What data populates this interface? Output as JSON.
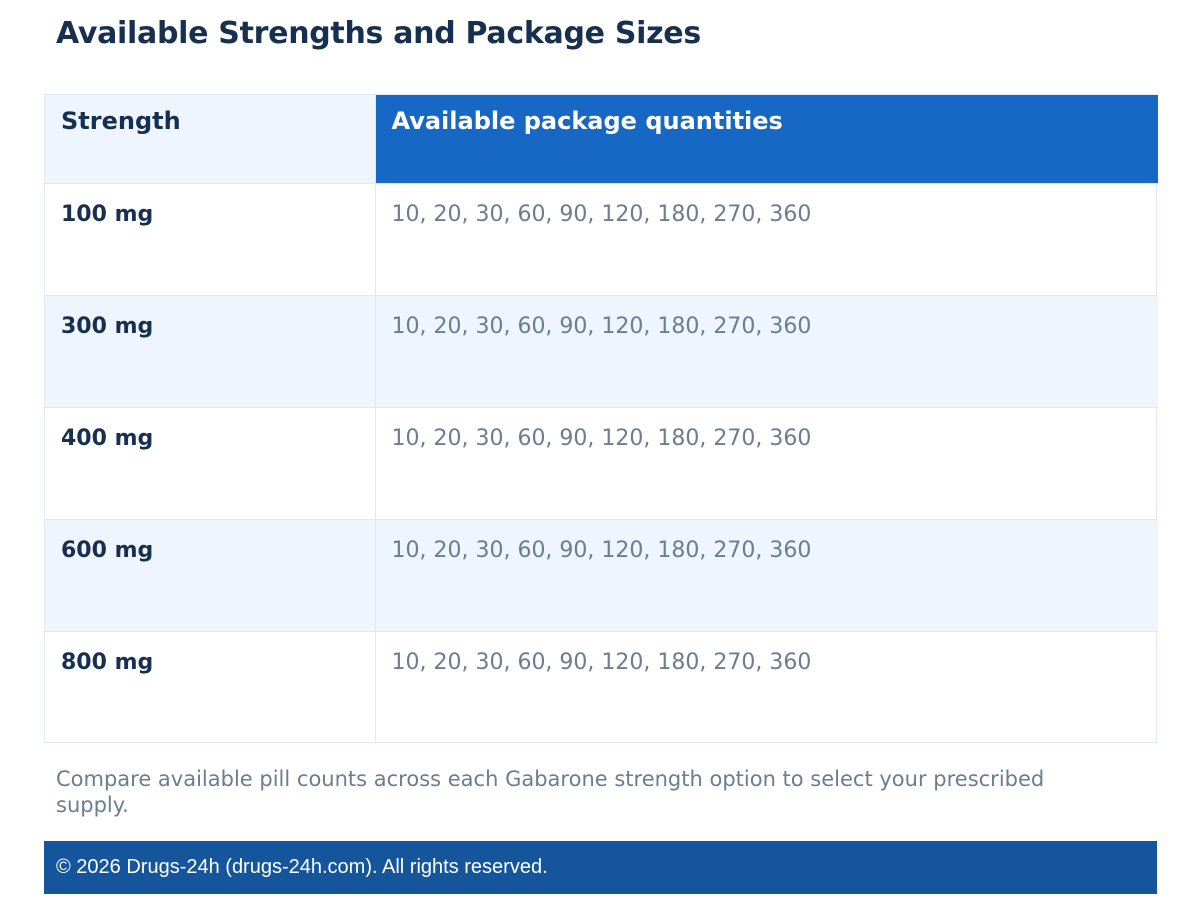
{
  "title": "Available Strengths and Package Sizes",
  "table": {
    "headers": [
      "Strength",
      "Available package quantities"
    ],
    "rows": [
      {
        "strength": "100 mg",
        "quantities": "10, 20, 30, 60, 90, 120, 180, 270, 360"
      },
      {
        "strength": "300 mg",
        "quantities": "10, 20, 30, 60, 90, 120, 180, 270, 360"
      },
      {
        "strength": "400 mg",
        "quantities": "10, 20, 30, 60, 90, 120, 180, 270, 360"
      },
      {
        "strength": "600 mg",
        "quantities": "10, 20, 30, 60, 90, 120, 180, 270, 360"
      },
      {
        "strength": "800 mg",
        "quantities": "10, 20, 30, 60, 90, 120, 180, 270, 360"
      }
    ]
  },
  "caption": "Compare available pill counts across each Gabarone strength option to select your prescribed supply.",
  "footer": {
    "text": "© 2026 Drugs-24h (drugs-24h.com). All rights reserved."
  },
  "colors": {
    "heading": "#17304f",
    "header_accent": "#1768c4",
    "row_alt": "#eef5fd",
    "muted_text": "#6b7d92",
    "footer_bg": "#14559b"
  }
}
